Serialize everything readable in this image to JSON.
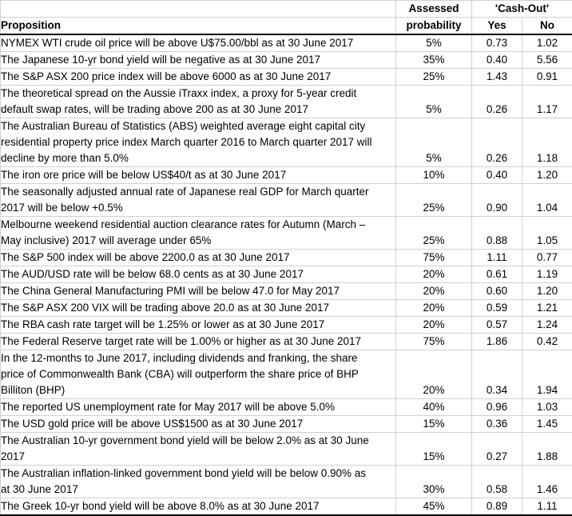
{
  "colors": {
    "grid": "#d0d0d0",
    "header_rule": "#000000",
    "text": "#000000",
    "background": "#ffffff"
  },
  "table": {
    "header": {
      "proposition": "Proposition",
      "assessed_line1": "Assessed",
      "assessed_line2": "probability",
      "cashout": "'Cash-Out'",
      "yes": "Yes",
      "no": "No"
    },
    "rows": [
      {
        "proposition": "NYMEX WTI crude oil price will be above U$75.00/bbl as at 30 June 2017",
        "probability": "5%",
        "yes": "0.73",
        "no": "1.02"
      },
      {
        "proposition": "The Japanese 10-yr bond yield will be negative as at 30 June 2017",
        "probability": "35%",
        "yes": "0.40",
        "no": "5.56"
      },
      {
        "proposition": "The S&P ASX 200 price index will be above 6000 as at 30 June 2017",
        "probability": "25%",
        "yes": "1.43",
        "no": "0.91"
      },
      {
        "proposition": "The theoretical spread on the Aussie iTraxx index, a proxy for 5-year credit\ndefault swap rates, will be trading above 200 as at 30 June 2017",
        "probability": "5%",
        "yes": "0.26",
        "no": "1.17"
      },
      {
        "proposition": "The Australian Bureau of Statistics (ABS) weighted average eight capital city\nresidential property price index March quarter 2016 to March quarter 2017 will\ndecline by more than 5.0%",
        "probability": "5%",
        "yes": "0.26",
        "no": "1.18"
      },
      {
        "proposition": "The iron ore price will be below US$40/t as at 30 June 2017",
        "probability": "10%",
        "yes": "0.40",
        "no": "1.20"
      },
      {
        "proposition": "The seasonally adjusted annual rate of Japanese real GDP for March quarter\n2017 will be below +0.5%",
        "probability": "25%",
        "yes": "0.90",
        "no": "1.04"
      },
      {
        "proposition": "Melbourne weekend residential auction clearance rates for Autumn (March –\nMay inclusive) 2017 will average under 65%",
        "probability": "25%",
        "yes": "0.88",
        "no": "1.05"
      },
      {
        "proposition": "The S&P 500 index will be above 2200.0 as at 30 June 2017",
        "probability": "75%",
        "yes": "1.11",
        "no": "0.77"
      },
      {
        "proposition": "The AUD/USD rate will be below 68.0 cents as at 30 June 2017",
        "probability": "20%",
        "yes": "0.61",
        "no": "1.19"
      },
      {
        "proposition": "The China General Manufacturing PMI will be below 47.0 for May 2017",
        "probability": "20%",
        "yes": "0.60",
        "no": "1.20"
      },
      {
        "proposition": "The S&P ASX 200 VIX will be trading above 20.0 as at 30 June 2017",
        "probability": "20%",
        "yes": "0.59",
        "no": "1.21"
      },
      {
        "proposition": "The RBA cash rate target will be 1.25% or lower as at 30 June 2017",
        "probability": "20%",
        "yes": "0.57",
        "no": "1.24"
      },
      {
        "proposition": "The Federal Reserve target rate will be 1.00% or higher as at 30 June 2017",
        "probability": "75%",
        "yes": "1.86",
        "no": "0.42"
      },
      {
        "proposition": "In the 12-months to June 2017, including dividends and franking, the share\nprice of Commonwealth Bank (CBA) will outperform the share price of BHP\nBilliton (BHP)",
        "probability": "20%",
        "yes": "0.34",
        "no": "1.94"
      },
      {
        "proposition": "The reported US unemployment rate for May 2017 will be above 5.0%",
        "probability": "40%",
        "yes": "0.96",
        "no": "1.03"
      },
      {
        "proposition": "The USD gold price will be above US$1500 as at 30 June 2017",
        "probability": "15%",
        "yes": "0.36",
        "no": "1.45"
      },
      {
        "proposition": "The Australian 10-yr government bond yield will be below 2.0% as at 30 June\n2017",
        "probability": "15%",
        "yes": "0.27",
        "no": "1.88"
      },
      {
        "proposition": "The Australian inflation-linked government bond yield will be below 0.90% as\nat 30 June 2017",
        "probability": "30%",
        "yes": "0.58",
        "no": "1.46"
      },
      {
        "proposition": "The Greek 10-yr bond yield will be above 8.0% as at 30 June 2017",
        "probability": "45%",
        "yes": "0.89",
        "no": "1.11"
      }
    ]
  }
}
